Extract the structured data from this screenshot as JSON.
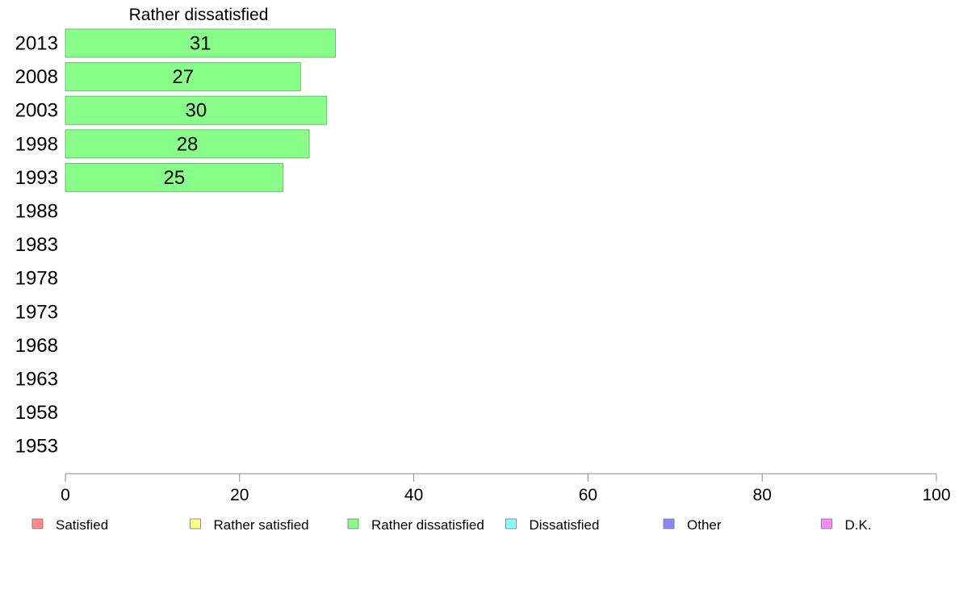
{
  "chart_data": {
    "type": "bar",
    "orientation": "horizontal",
    "title": "Rather dissatisfied",
    "categories": [
      "2013",
      "2008",
      "2003",
      "1998",
      "1993",
      "1988",
      "1983",
      "1978",
      "1973",
      "1968",
      "1963",
      "1958",
      "1953"
    ],
    "series": [
      {
        "name": "Rather dissatisfied",
        "color": "#88ff88",
        "values": [
          31,
          27,
          30,
          28,
          25,
          null,
          null,
          null,
          null,
          null,
          null,
          null,
          null
        ]
      }
    ],
    "xlim": [
      0,
      100
    ],
    "xticks": [
      0,
      20,
      40,
      60,
      80,
      100
    ],
    "grid": false,
    "legend_position": "bottom",
    "legend": [
      {
        "label": "Satisfied",
        "color": "#ff8888"
      },
      {
        "label": "Rather satisfied",
        "color": "#ffff88"
      },
      {
        "label": "Rather dissatisfied",
        "color": "#88ff88"
      },
      {
        "label": "Dissatisfied",
        "color": "#88ffff"
      },
      {
        "label": "Other",
        "color": "#8888ff"
      },
      {
        "label": "D.K.",
        "color": "#ff88ff"
      }
    ]
  }
}
